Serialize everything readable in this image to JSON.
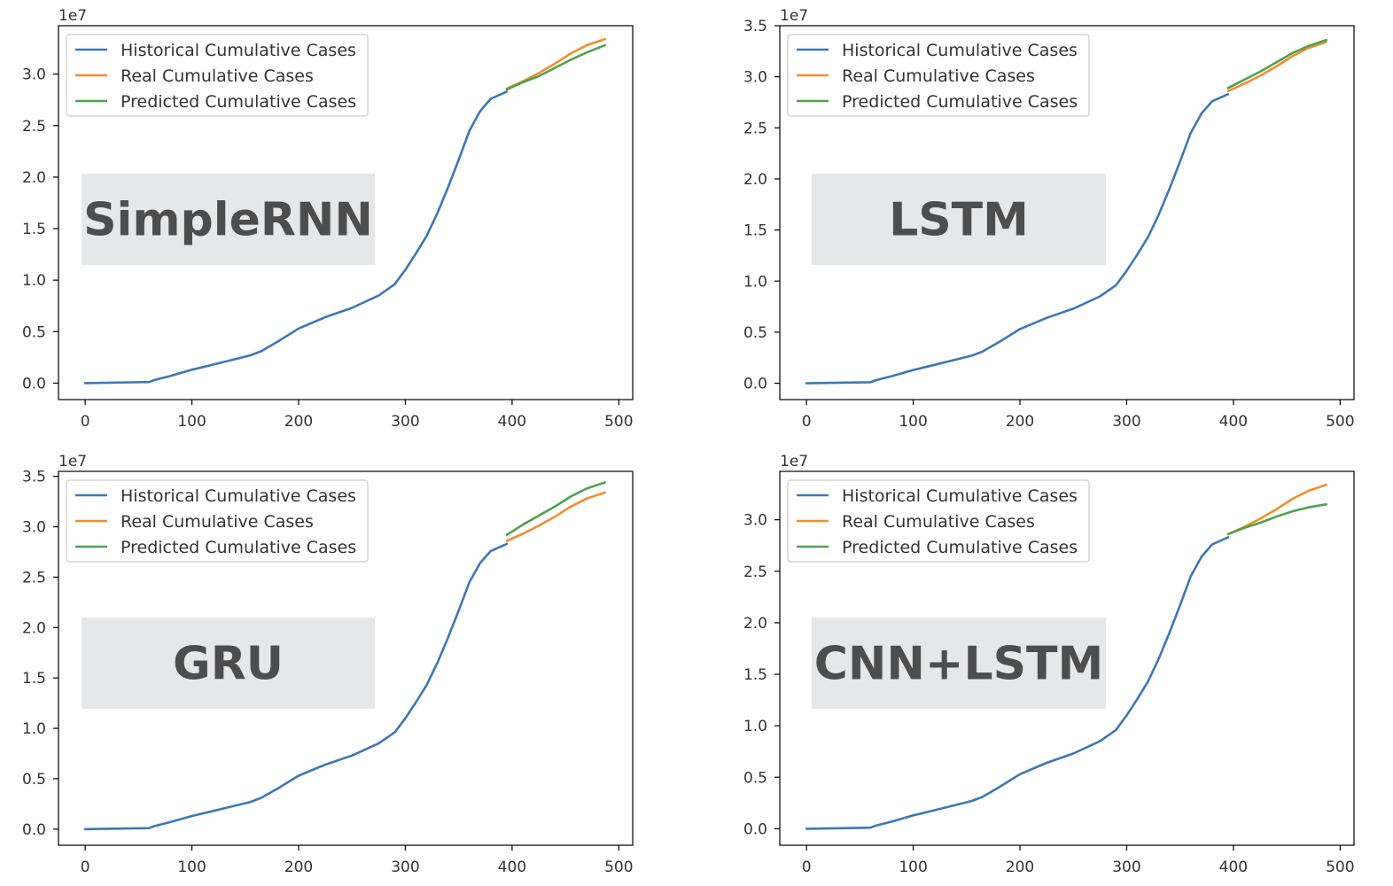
{
  "figure": {
    "colors": {
      "historical": "#3d78b3",
      "real": "#f28e2b",
      "predicted": "#4ea24e",
      "label_box": "#e6e7e8",
      "label_text": "#4d4d4d"
    }
  },
  "chart_data": [
    {
      "type": "line",
      "model_label": "SimpleRNN",
      "offset_label": "1e7",
      "xlim": [
        -25,
        513
      ],
      "ylim": [
        -0.16,
        3.47
      ],
      "xticks": [
        0,
        100,
        200,
        300,
        400,
        500
      ],
      "xtick_labels": [
        "0",
        "100",
        "200",
        "300",
        "400",
        "500"
      ],
      "yticks": [
        0.0,
        0.5,
        1.0,
        1.5,
        2.0,
        2.5,
        3.0
      ],
      "ytick_labels": [
        "0.0",
        "0.5",
        "1.0",
        "1.5",
        "2.0",
        "2.5",
        "3.0"
      ],
      "legend_position": "upper left",
      "series": [
        {
          "name": "Historical Cumulative Cases",
          "color_key": "historical",
          "x": [
            0,
            60,
            65,
            80,
            100,
            120,
            155,
            165,
            180,
            200,
            225,
            250,
            275,
            290,
            300,
            310,
            320,
            330,
            340,
            350,
            360,
            370,
            380,
            395
          ],
          "y": [
            0.0,
            0.01,
            0.03,
            0.07,
            0.13,
            0.18,
            0.27,
            0.31,
            0.4,
            0.53,
            0.64,
            0.73,
            0.85,
            0.96,
            1.1,
            1.26,
            1.43,
            1.65,
            1.9,
            2.17,
            2.45,
            2.64,
            2.76,
            2.83
          ]
        },
        {
          "name": "Real Cumulative Cases",
          "color_key": "real",
          "x": [
            395,
            410,
            425,
            440,
            455,
            470,
            487
          ],
          "y": [
            2.86,
            2.93,
            3.01,
            3.1,
            3.2,
            3.28,
            3.34
          ]
        },
        {
          "name": "Predicted Cumulative Cases",
          "color_key": "predicted",
          "x": [
            395,
            410,
            425,
            440,
            455,
            470,
            487
          ],
          "y": [
            2.85,
            2.92,
            2.98,
            3.06,
            3.14,
            3.21,
            3.28
          ]
        }
      ]
    },
    {
      "type": "line",
      "model_label": "LSTM",
      "offset_label": "1e7",
      "xlim": [
        -25,
        513
      ],
      "ylim": [
        -0.16,
        3.5
      ],
      "xticks": [
        0,
        100,
        200,
        300,
        400,
        500
      ],
      "xtick_labels": [
        "0",
        "100",
        "200",
        "300",
        "400",
        "500"
      ],
      "yticks": [
        0.0,
        0.5,
        1.0,
        1.5,
        2.0,
        2.5,
        3.0,
        3.5
      ],
      "ytick_labels": [
        "0.0",
        "0.5",
        "1.0",
        "1.5",
        "2.0",
        "2.5",
        "3.0",
        "3.5"
      ],
      "legend_position": "upper left",
      "series": [
        {
          "name": "Historical Cumulative Cases",
          "color_key": "historical",
          "x": [
            0,
            60,
            65,
            80,
            100,
            120,
            155,
            165,
            180,
            200,
            225,
            250,
            275,
            290,
            300,
            310,
            320,
            330,
            340,
            350,
            360,
            370,
            380,
            395
          ],
          "y": [
            0.0,
            0.01,
            0.03,
            0.07,
            0.13,
            0.18,
            0.27,
            0.31,
            0.4,
            0.53,
            0.64,
            0.73,
            0.85,
            0.96,
            1.1,
            1.26,
            1.43,
            1.65,
            1.9,
            2.17,
            2.45,
            2.64,
            2.76,
            2.83
          ]
        },
        {
          "name": "Real Cumulative Cases",
          "color_key": "real",
          "x": [
            395,
            410,
            425,
            440,
            455,
            470,
            487
          ],
          "y": [
            2.86,
            2.93,
            3.01,
            3.1,
            3.2,
            3.28,
            3.34
          ]
        },
        {
          "name": "Predicted Cumulative Cases",
          "color_key": "predicted",
          "x": [
            395,
            410,
            425,
            440,
            455,
            470,
            487
          ],
          "y": [
            2.89,
            2.97,
            3.05,
            3.14,
            3.23,
            3.3,
            3.36
          ]
        }
      ]
    },
    {
      "type": "line",
      "model_label": "GRU",
      "offset_label": "1e7",
      "xlim": [
        -25,
        513
      ],
      "ylim": [
        -0.16,
        3.55
      ],
      "xticks": [
        0,
        100,
        200,
        300,
        400,
        500
      ],
      "xtick_labels": [
        "0",
        "100",
        "200",
        "300",
        "400",
        "500"
      ],
      "yticks": [
        0.0,
        0.5,
        1.0,
        1.5,
        2.0,
        2.5,
        3.0,
        3.5
      ],
      "ytick_labels": [
        "0.0",
        "0.5",
        "1.0",
        "1.5",
        "2.0",
        "2.5",
        "3.0",
        "3.5"
      ],
      "legend_position": "upper left",
      "series": [
        {
          "name": "Historical Cumulative Cases",
          "color_key": "historical",
          "x": [
            0,
            60,
            65,
            80,
            100,
            120,
            155,
            165,
            180,
            200,
            225,
            250,
            275,
            290,
            300,
            310,
            320,
            330,
            340,
            350,
            360,
            370,
            380,
            395
          ],
          "y": [
            0.0,
            0.01,
            0.03,
            0.07,
            0.13,
            0.18,
            0.27,
            0.31,
            0.4,
            0.53,
            0.64,
            0.73,
            0.85,
            0.96,
            1.1,
            1.26,
            1.43,
            1.65,
            1.9,
            2.17,
            2.45,
            2.64,
            2.76,
            2.83
          ]
        },
        {
          "name": "Real Cumulative Cases",
          "color_key": "real",
          "x": [
            395,
            410,
            425,
            440,
            455,
            470,
            487
          ],
          "y": [
            2.86,
            2.93,
            3.01,
            3.1,
            3.2,
            3.28,
            3.34
          ]
        },
        {
          "name": "Predicted Cumulative Cases",
          "color_key": "predicted",
          "x": [
            395,
            410,
            425,
            440,
            455,
            470,
            487
          ],
          "y": [
            2.92,
            3.02,
            3.11,
            3.2,
            3.3,
            3.38,
            3.44
          ]
        }
      ]
    },
    {
      "type": "line",
      "model_label": "CNN+LSTM",
      "offset_label": "1e7",
      "xlim": [
        -25,
        513
      ],
      "ylim": [
        -0.16,
        3.47
      ],
      "xticks": [
        0,
        100,
        200,
        300,
        400,
        500
      ],
      "xtick_labels": [
        "0",
        "100",
        "200",
        "300",
        "400",
        "500"
      ],
      "yticks": [
        0.0,
        0.5,
        1.0,
        1.5,
        2.0,
        2.5,
        3.0
      ],
      "ytick_labels": [
        "0.0",
        "0.5",
        "1.0",
        "1.5",
        "2.0",
        "2.5",
        "3.0"
      ],
      "legend_position": "upper left",
      "series": [
        {
          "name": "Historical Cumulative Cases",
          "color_key": "historical",
          "x": [
            0,
            60,
            65,
            80,
            100,
            120,
            155,
            165,
            180,
            200,
            225,
            250,
            275,
            290,
            300,
            310,
            320,
            330,
            340,
            350,
            360,
            370,
            380,
            395
          ],
          "y": [
            0.0,
            0.01,
            0.03,
            0.07,
            0.13,
            0.18,
            0.27,
            0.31,
            0.4,
            0.53,
            0.64,
            0.73,
            0.85,
            0.96,
            1.1,
            1.26,
            1.43,
            1.65,
            1.9,
            2.17,
            2.45,
            2.64,
            2.76,
            2.83
          ]
        },
        {
          "name": "Real Cumulative Cases",
          "color_key": "real",
          "x": [
            395,
            410,
            425,
            440,
            455,
            470,
            487
          ],
          "y": [
            2.86,
            2.93,
            3.01,
            3.1,
            3.2,
            3.28,
            3.34
          ]
        },
        {
          "name": "Predicted Cumulative Cases",
          "color_key": "predicted",
          "x": [
            395,
            410,
            425,
            440,
            455,
            470,
            487
          ],
          "y": [
            2.86,
            2.92,
            2.97,
            3.03,
            3.08,
            3.12,
            3.15
          ]
        }
      ]
    }
  ]
}
